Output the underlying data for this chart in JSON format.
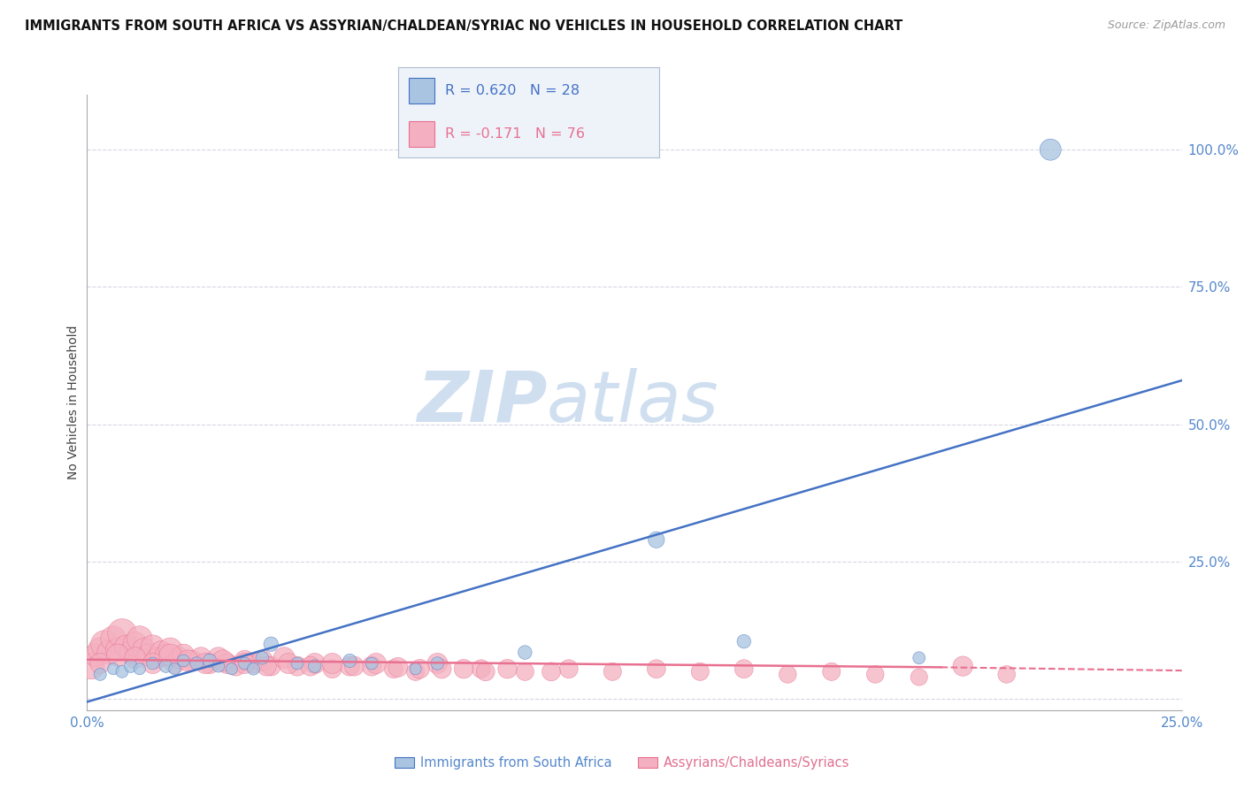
{
  "title": "IMMIGRANTS FROM SOUTH AFRICA VS ASSYRIAN/CHALDEAN/SYRIAC NO VEHICLES IN HOUSEHOLD CORRELATION CHART",
  "source": "Source: ZipAtlas.com",
  "ylabel": "No Vehicles in Household",
  "xlim": [
    0.0,
    0.25
  ],
  "ylim": [
    -0.02,
    1.1
  ],
  "xticks": [
    0.0,
    0.05,
    0.1,
    0.15,
    0.2,
    0.25
  ],
  "xticklabels": [
    "0.0%",
    "",
    "",
    "",
    "",
    "25.0%"
  ],
  "yticks_right": [
    0.0,
    0.25,
    0.5,
    0.75,
    1.0
  ],
  "ytick_labels_right": [
    "",
    "25.0%",
    "50.0%",
    "75.0%",
    "100.0%"
  ],
  "blue_R": 0.62,
  "blue_N": 28,
  "pink_R": -0.171,
  "pink_N": 76,
  "blue_color": "#a8c4e0",
  "pink_color": "#f4b0c0",
  "blue_line_color": "#4472c4",
  "pink_line_color": "#e87090",
  "grid_color": "#ccccdd",
  "watermark_zip": "ZIP",
  "watermark_atlas": "atlas",
  "watermark_color": "#d0dff0",
  "legend_box_facecolor": "#eef3fa",
  "legend_box_edgecolor": "#b0bcd0",
  "blue_scatter_x": [
    0.003,
    0.006,
    0.008,
    0.01,
    0.012,
    0.015,
    0.018,
    0.02,
    0.022,
    0.025,
    0.028,
    0.03,
    0.033,
    0.036,
    0.04,
    0.042,
    0.048,
    0.052,
    0.06,
    0.065,
    0.075,
    0.08,
    0.1,
    0.13,
    0.15,
    0.19,
    0.22,
    0.038
  ],
  "blue_scatter_y": [
    0.045,
    0.055,
    0.05,
    0.06,
    0.055,
    0.065,
    0.06,
    0.055,
    0.07,
    0.065,
    0.07,
    0.06,
    0.055,
    0.065,
    0.075,
    0.1,
    0.065,
    0.06,
    0.07,
    0.065,
    0.055,
    0.065,
    0.085,
    0.29,
    0.105,
    0.075,
    1.0,
    0.055
  ],
  "blue_scatter_size": [
    20,
    18,
    20,
    22,
    18,
    20,
    22,
    18,
    20,
    22,
    24,
    20,
    18,
    20,
    22,
    28,
    20,
    22,
    24,
    20,
    18,
    22,
    25,
    35,
    25,
    20,
    60,
    20
  ],
  "pink_scatter_x": [
    0.001,
    0.002,
    0.003,
    0.004,
    0.005,
    0.006,
    0.007,
    0.008,
    0.009,
    0.01,
    0.011,
    0.012,
    0.013,
    0.014,
    0.015,
    0.016,
    0.017,
    0.018,
    0.019,
    0.02,
    0.021,
    0.022,
    0.024,
    0.026,
    0.028,
    0.03,
    0.032,
    0.034,
    0.036,
    0.038,
    0.04,
    0.042,
    0.045,
    0.048,
    0.052,
    0.056,
    0.06,
    0.065,
    0.07,
    0.075,
    0.08,
    0.09,
    0.1,
    0.11,
    0.12,
    0.13,
    0.14,
    0.15,
    0.16,
    0.17,
    0.18,
    0.19,
    0.2,
    0.21,
    0.003,
    0.007,
    0.011,
    0.015,
    0.019,
    0.023,
    0.027,
    0.031,
    0.036,
    0.041,
    0.046,
    0.051,
    0.056,
    0.061,
    0.066,
    0.071,
    0.076,
    0.081,
    0.086,
    0.091,
    0.096,
    0.106
  ],
  "pink_scatter_y": [
    0.06,
    0.08,
    0.09,
    0.1,
    0.085,
    0.11,
    0.09,
    0.12,
    0.095,
    0.085,
    0.1,
    0.11,
    0.09,
    0.08,
    0.095,
    0.075,
    0.085,
    0.08,
    0.09,
    0.065,
    0.075,
    0.08,
    0.07,
    0.075,
    0.065,
    0.075,
    0.065,
    0.06,
    0.07,
    0.065,
    0.07,
    0.06,
    0.075,
    0.06,
    0.065,
    0.055,
    0.06,
    0.06,
    0.055,
    0.05,
    0.065,
    0.055,
    0.05,
    0.055,
    0.05,
    0.055,
    0.05,
    0.055,
    0.045,
    0.05,
    0.045,
    0.04,
    0.06,
    0.045,
    0.065,
    0.08,
    0.075,
    0.065,
    0.08,
    0.07,
    0.065,
    0.07,
    0.065,
    0.06,
    0.065,
    0.06,
    0.065,
    0.06,
    0.065,
    0.058,
    0.055,
    0.055,
    0.055,
    0.05,
    0.055,
    0.05
  ],
  "pink_scatter_size": [
    90,
    70,
    80,
    100,
    75,
    85,
    75,
    110,
    75,
    70,
    80,
    85,
    70,
    65,
    75,
    60,
    70,
    65,
    75,
    55,
    60,
    65,
    55,
    60,
    55,
    60,
    55,
    50,
    55,
    50,
    60,
    50,
    60,
    50,
    55,
    45,
    50,
    50,
    45,
    42,
    55,
    45,
    42,
    45,
    42,
    45,
    42,
    45,
    40,
    42,
    40,
    38,
    52,
    40,
    55,
    65,
    60,
    55,
    65,
    60,
    55,
    60,
    55,
    50,
    55,
    50,
    55,
    50,
    55,
    50,
    48,
    48,
    48,
    45,
    48,
    45
  ],
  "blue_line_x0": 0.0,
  "blue_line_y0": -0.005,
  "blue_line_x1": 0.25,
  "blue_line_y1": 0.58,
  "pink_line_x0": 0.0,
  "pink_line_y0": 0.072,
  "pink_line_x1_solid": 0.195,
  "pink_line_y1_solid": 0.058,
  "pink_line_x2": 0.25,
  "pink_line_y2": 0.052
}
